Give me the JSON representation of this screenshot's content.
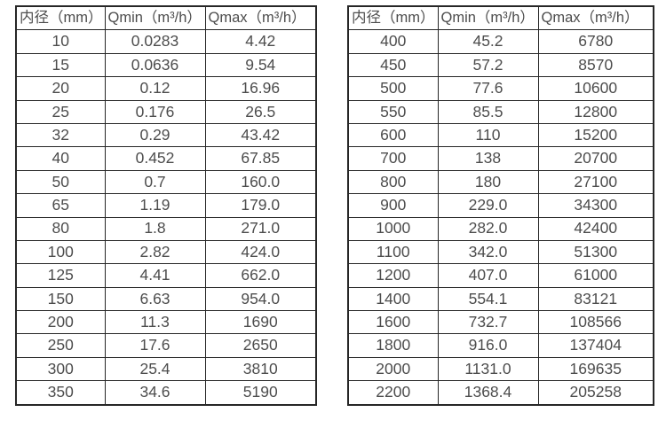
{
  "page": {
    "description": "Flow meter specification: inner diameter vs minimum and maximum flow range",
    "background_color": "#ffffff",
    "border_color": "#262626",
    "text_color": "#4d4d4d"
  },
  "tables": [
    {
      "id": "small-diameter",
      "headers": [
        "内径（mm）",
        "Qmin（m³/h）",
        "Qmax（m³/h）"
      ],
      "rows": [
        [
          "10",
          "0.0283",
          "4.42"
        ],
        [
          "15",
          "0.0636",
          "9.54"
        ],
        [
          "20",
          "0.12",
          "16.96"
        ],
        [
          "25",
          "0.176",
          "26.5"
        ],
        [
          "32",
          "0.29",
          "43.42"
        ],
        [
          "40",
          "0.452",
          "67.85"
        ],
        [
          "50",
          "0.7",
          "160.0"
        ],
        [
          "65",
          "1.19",
          "179.0"
        ],
        [
          "80",
          "1.8",
          "271.0"
        ],
        [
          "100",
          "2.82",
          "424.0"
        ],
        [
          "125",
          "4.41",
          "662.0"
        ],
        [
          "150",
          "6.63",
          "954.0"
        ],
        [
          "200",
          "11.3",
          "1690"
        ],
        [
          "250",
          "17.6",
          "2650"
        ],
        [
          "300",
          "25.4",
          "3810"
        ],
        [
          "350",
          "34.6",
          "5190"
        ]
      ]
    },
    {
      "id": "large-diameter",
      "headers": [
        "内径（mm）",
        "Qmin（m³/h）",
        "Qmax（m³/h）"
      ],
      "rows": [
        [
          "400",
          "45.2",
          "6780"
        ],
        [
          "450",
          "57.2",
          "8570"
        ],
        [
          "500",
          "77.6",
          "10600"
        ],
        [
          "550",
          "85.5",
          "12800"
        ],
        [
          "600",
          "110",
          "15200"
        ],
        [
          "700",
          "138",
          "20700"
        ],
        [
          "800",
          "180",
          "27100"
        ],
        [
          "900",
          "229.0",
          "34300"
        ],
        [
          "1000",
          "282.0",
          "42400"
        ],
        [
          "1100",
          "342.0",
          "51300"
        ],
        [
          "1200",
          "407.0",
          "61000"
        ],
        [
          "1400",
          "554.1",
          "83121"
        ],
        [
          "1600",
          "732.7",
          "108566"
        ],
        [
          "1800",
          "916.0",
          "137404"
        ],
        [
          "2000",
          "1131.0",
          "169635"
        ],
        [
          "2200",
          "1368.4",
          "205258"
        ]
      ]
    }
  ]
}
